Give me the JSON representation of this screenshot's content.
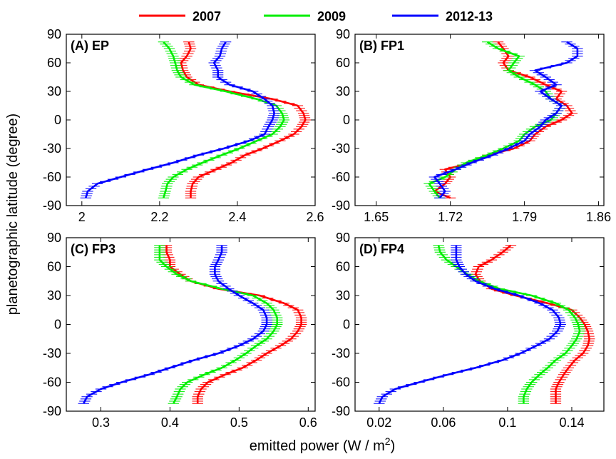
{
  "figure": {
    "xlabel": "emitted power (W / m",
    "xlabel_sup": "2",
    "xlabel_end": ")",
    "ylabel": "planetographic latitude (degree)"
  },
  "legend": [
    {
      "name": "2007",
      "color": "#ff0000"
    },
    {
      "name": "2009",
      "color": "#00ee00"
    },
    {
      "name": "2012-13",
      "color": "#0000ff"
    }
  ],
  "chart_data": [
    {
      "type": "line",
      "title": "(A) EP",
      "xlim": [
        1.96,
        2.6
      ],
      "ylim": [
        -90,
        90
      ],
      "xticks": [
        2,
        2.2,
        2.4,
        2.6
      ],
      "xtick_labels": [
        "2",
        "2.2",
        "2.4",
        "2.6"
      ],
      "yticks": [
        -90,
        -60,
        -30,
        0,
        30,
        60,
        90
      ],
      "ytick_labels": [
        "-90",
        "-60",
        "-30",
        "0",
        "30",
        "60",
        "90"
      ],
      "lat": [
        -82,
        -75,
        -67,
        -60,
        -52,
        -45,
        -37,
        -30,
        -22,
        -15,
        -7,
        0,
        7,
        15,
        22,
        30,
        37,
        45,
        52,
        60,
        67,
        75,
        82
      ],
      "series": [
        {
          "name": "2007",
          "color": "#ff0000",
          "values": [
            2.28,
            2.28,
            2.285,
            2.3,
            2.345,
            2.385,
            2.42,
            2.465,
            2.51,
            2.545,
            2.565,
            2.575,
            2.57,
            2.555,
            2.49,
            2.38,
            2.3,
            2.27,
            2.26,
            2.255,
            2.27,
            2.28,
            2.275
          ]
        },
        {
          "name": "2009",
          "color": "#00ee00",
          "values": [
            2.21,
            2.215,
            2.22,
            2.235,
            2.27,
            2.31,
            2.36,
            2.405,
            2.45,
            2.49,
            2.51,
            2.52,
            2.515,
            2.5,
            2.45,
            2.37,
            2.29,
            2.255,
            2.245,
            2.24,
            2.235,
            2.225,
            2.21
          ]
        },
        {
          "name": "2012-13",
          "color": "#0000ff",
          "values": [
            2.01,
            2.015,
            2.04,
            2.1,
            2.17,
            2.235,
            2.3,
            2.365,
            2.43,
            2.47,
            2.48,
            2.49,
            2.495,
            2.49,
            2.47,
            2.44,
            2.38,
            2.35,
            2.35,
            2.34,
            2.355,
            2.36,
            2.37
          ]
        }
      ]
    },
    {
      "type": "line",
      "title": "(B) FP1",
      "xlim": [
        1.63,
        1.865
      ],
      "ylim": [
        -90,
        90
      ],
      "xticks": [
        1.65,
        1.72,
        1.79,
        1.86
      ],
      "xtick_labels": [
        "1.65",
        "1.72",
        "1.79",
        "1.86"
      ],
      "yticks": [
        -90,
        -60,
        -30,
        0,
        30,
        60,
        90
      ],
      "ytick_labels": [
        "-90",
        "-60",
        "-30",
        "0",
        "30",
        "60",
        "90"
      ],
      "lat": [
        -82,
        -75,
        -67,
        -60,
        -52,
        -45,
        -37,
        -30,
        -22,
        -15,
        -7,
        0,
        7,
        15,
        22,
        30,
        37,
        45,
        52,
        60,
        67,
        75,
        82
      ],
      "series": [
        {
          "name": "2007",
          "color": "#ff0000",
          "values": [
            1.72,
            1.705,
            1.715,
            1.72,
            1.715,
            1.74,
            1.755,
            1.78,
            1.795,
            1.8,
            1.81,
            1.825,
            1.835,
            1.83,
            1.82,
            1.825,
            1.81,
            1.795,
            1.775,
            1.77,
            1.775,
            1.77,
            1.765
          ]
        },
        {
          "name": "2009",
          "color": "#00ee00",
          "values": [
            1.71,
            1.705,
            1.7,
            1.715,
            1.725,
            1.735,
            1.755,
            1.77,
            1.785,
            1.79,
            1.8,
            1.815,
            1.82,
            1.825,
            1.815,
            1.81,
            1.8,
            1.785,
            1.775,
            1.78,
            1.785,
            1.765,
            1.755
          ]
        },
        {
          "name": "2012-13",
          "color": "#0000ff",
          "values": [
            1.71,
            1.715,
            1.71,
            1.705,
            1.725,
            1.74,
            1.76,
            1.775,
            1.79,
            1.795,
            1.805,
            1.81,
            1.82,
            1.825,
            1.815,
            1.805,
            1.82,
            1.81,
            1.8,
            1.83,
            1.84,
            1.84,
            1.83
          ]
        }
      ]
    },
    {
      "type": "line",
      "title": "(C) FP3",
      "xlim": [
        0.25,
        0.61
      ],
      "ylim": [
        -90,
        90
      ],
      "xticks": [
        0.3,
        0.4,
        0.5,
        0.6
      ],
      "xtick_labels": [
        "0.3",
        "0.4",
        "0.5",
        "0.6"
      ],
      "yticks": [
        -90,
        -60,
        -30,
        0,
        30,
        60,
        90
      ],
      "ytick_labels": [
        "-90",
        "-60",
        "-30",
        "0",
        "30",
        "60",
        "90"
      ],
      "lat": [
        -82,
        -75,
        -67,
        -60,
        -52,
        -45,
        -37,
        -30,
        -22,
        -15,
        -7,
        0,
        7,
        15,
        22,
        30,
        37,
        45,
        52,
        60,
        67,
        75,
        82
      ],
      "series": [
        {
          "name": "2007",
          "color": "#ff0000",
          "values": [
            0.44,
            0.44,
            0.445,
            0.455,
            0.48,
            0.505,
            0.525,
            0.54,
            0.56,
            0.575,
            0.585,
            0.59,
            0.59,
            0.585,
            0.565,
            0.53,
            0.47,
            0.43,
            0.415,
            0.4,
            0.4,
            0.395,
            0.395
          ]
        },
        {
          "name": "2009",
          "color": "#00ee00",
          "values": [
            0.405,
            0.41,
            0.415,
            0.425,
            0.45,
            0.475,
            0.495,
            0.51,
            0.525,
            0.54,
            0.55,
            0.555,
            0.555,
            0.55,
            0.54,
            0.52,
            0.475,
            0.43,
            0.41,
            0.395,
            0.385,
            0.385,
            0.385
          ]
        },
        {
          "name": "2012-13",
          "color": "#0000ff",
          "values": [
            0.275,
            0.28,
            0.3,
            0.33,
            0.37,
            0.4,
            0.435,
            0.47,
            0.5,
            0.52,
            0.535,
            0.54,
            0.54,
            0.535,
            0.52,
            0.5,
            0.485,
            0.47,
            0.465,
            0.465,
            0.47,
            0.475,
            0.475
          ]
        }
      ]
    },
    {
      "type": "line",
      "title": "(D) FP4",
      "xlim": [
        0.005,
        0.16
      ],
      "ylim": [
        -90,
        90
      ],
      "xticks": [
        0.02,
        0.06,
        0.1,
        0.14
      ],
      "xtick_labels": [
        "0.02",
        "0.06",
        "0.1",
        "0.14"
      ],
      "yticks": [
        -90,
        -60,
        -30,
        0,
        30,
        60,
        90
      ],
      "ytick_labels": [
        "-90",
        "-60",
        "-30",
        "0",
        "30",
        "60",
        "90"
      ],
      "lat": [
        -82,
        -75,
        -67,
        -60,
        -52,
        -45,
        -37,
        -30,
        -22,
        -15,
        -7,
        0,
        7,
        15,
        22,
        30,
        37,
        45,
        52,
        60,
        67,
        75,
        82
      ],
      "series": [
        {
          "name": "2007",
          "color": "#ff0000",
          "values": [
            0.13,
            0.13,
            0.13,
            0.132,
            0.135,
            0.138,
            0.142,
            0.147,
            0.15,
            0.151,
            0.15,
            0.148,
            0.145,
            0.14,
            0.125,
            0.105,
            0.09,
            0.083,
            0.08,
            0.082,
            0.09,
            0.097,
            0.102
          ]
        },
        {
          "name": "2009",
          "color": "#00ee00",
          "values": [
            0.11,
            0.11,
            0.112,
            0.115,
            0.12,
            0.125,
            0.13,
            0.136,
            0.14,
            0.143,
            0.145,
            0.144,
            0.142,
            0.138,
            0.13,
            0.115,
            0.095,
            0.082,
            0.075,
            0.068,
            0.062,
            0.058,
            0.057
          ]
        },
        {
          "name": "2012-13",
          "color": "#0000ff",
          "values": [
            0.02,
            0.022,
            0.03,
            0.045,
            0.063,
            0.08,
            0.097,
            0.108,
            0.118,
            0.126,
            0.131,
            0.133,
            0.132,
            0.128,
            0.12,
            0.107,
            0.092,
            0.08,
            0.074,
            0.07,
            0.068,
            0.068,
            0.068
          ]
        }
      ]
    }
  ]
}
